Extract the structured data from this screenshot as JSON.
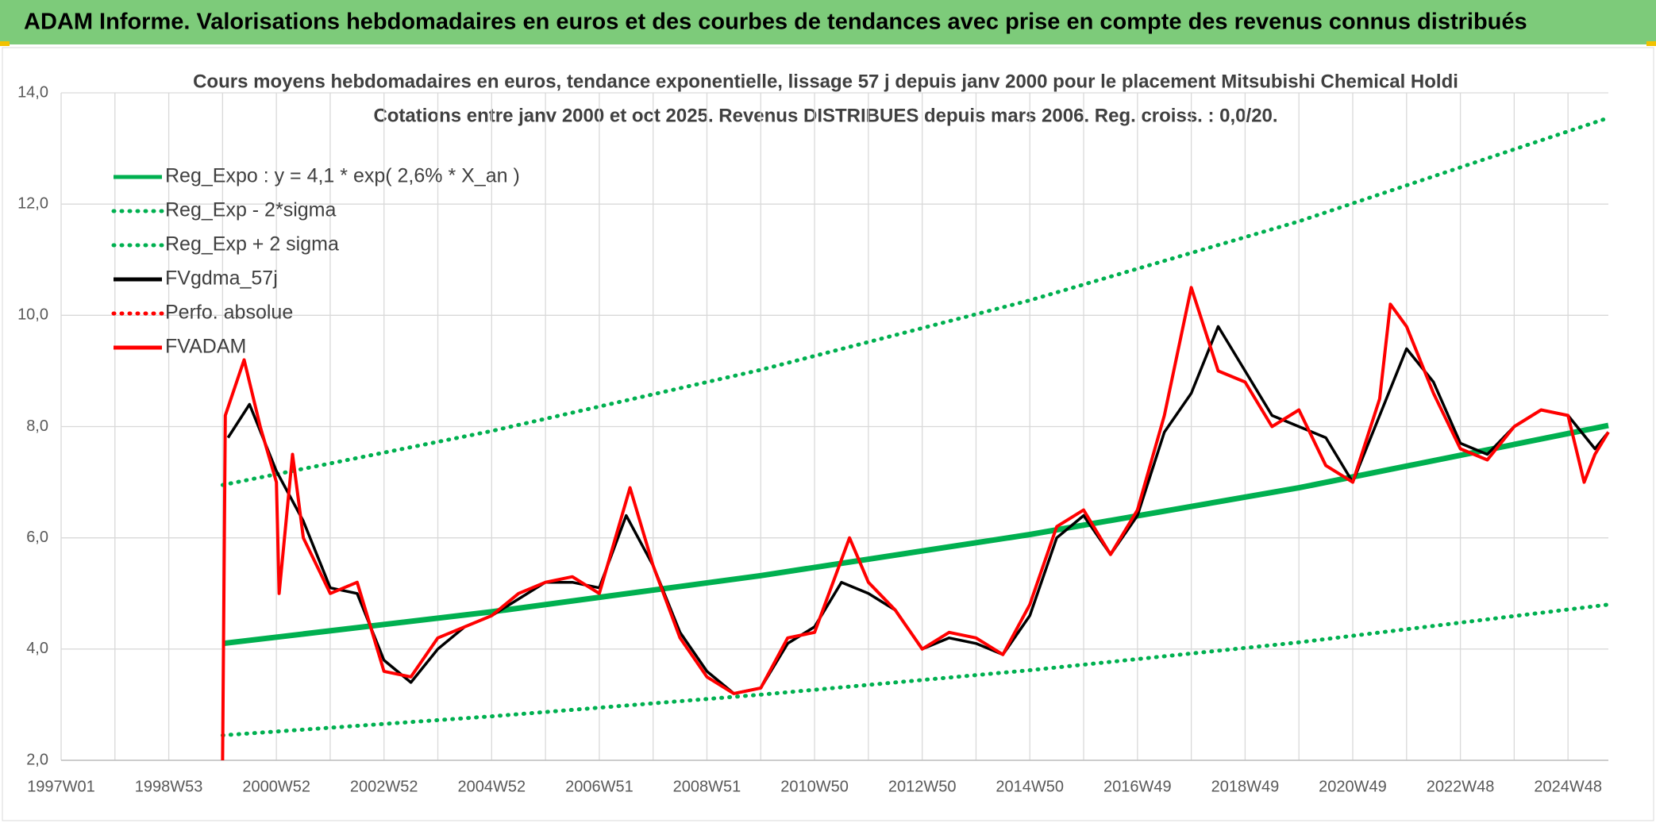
{
  "header": {
    "title": "ADAM Informe. Valorisations hebdomadaires en euros et des courbes de tendances avec prise en compte des revenus connus distribués"
  },
  "chart_data": {
    "type": "line",
    "title": "Cours moyens hebdomadaires en euros, tendance exponentielle, lissage 57 j depuis janv 2000 pour le placement Mitsubishi Chemical Holdi",
    "subtitle": "Cotations entre janv 2000 et oct 2025. Revenus DISTRIBUES depuis mars 2006. Reg. croiss. : 0,0/20.",
    "xlim": [
      1997,
      2025.75
    ],
    "xticks": [
      {
        "value": 1997,
        "label": "1997W01"
      },
      {
        "value": 1999,
        "label": "1998W53"
      },
      {
        "value": 2001,
        "label": "2000W52"
      },
      {
        "value": 2003,
        "label": "2002W52"
      },
      {
        "value": 2005,
        "label": "2004W52"
      },
      {
        "value": 2007,
        "label": "2006W51"
      },
      {
        "value": 2009,
        "label": "2008W51"
      },
      {
        "value": 2011,
        "label": "2010W50"
      },
      {
        "value": 2013,
        "label": "2012W50"
      },
      {
        "value": 2015,
        "label": "2014W50"
      },
      {
        "value": 2017,
        "label": "2016W49"
      },
      {
        "value": 2019,
        "label": "2018W49"
      },
      {
        "value": 2021,
        "label": "2020W49"
      },
      {
        "value": 2023,
        "label": "2022W48"
      },
      {
        "value": 2025,
        "label": "2024W48"
      }
    ],
    "xminorticks": [
      1998,
      2000,
      2002,
      2004,
      2006,
      2008,
      2010,
      2012,
      2014,
      2016,
      2018,
      2020,
      2022,
      2024
    ],
    "ylim": [
      2,
      14
    ],
    "yticks": [
      {
        "value": 2,
        "label": "2,0"
      },
      {
        "value": 4,
        "label": "4,0"
      },
      {
        "value": 6,
        "label": "6,0"
      },
      {
        "value": 8,
        "label": "8,0"
      },
      {
        "value": 10,
        "label": "10,0"
      },
      {
        "value": 12,
        "label": "12,0"
      },
      {
        "value": 14,
        "label": "14,0"
      }
    ],
    "grid": true,
    "legend": "top-left",
    "series": [
      {
        "name": "Reg_Expo : y = 4,1 * exp( 2,6% *  X_an )",
        "color": "#00b050",
        "style": "solid",
        "x": [
          2000,
          2005,
          2010,
          2015,
          2020,
          2025.75
        ],
        "values": [
          4.1,
          4.67,
          5.32,
          6.06,
          6.9,
          8.02
        ]
      },
      {
        "name": "Reg_Exp - 2*sigma",
        "color": "#00b050",
        "style": "dotted",
        "x": [
          2000,
          2005,
          2010,
          2015,
          2020,
          2025.75
        ],
        "values": [
          2.45,
          2.79,
          3.18,
          3.62,
          4.12,
          4.8
        ]
      },
      {
        "name": "Reg_Exp + 2 sigma",
        "color": "#00b050",
        "style": "dotted",
        "x": [
          2000,
          2005,
          2010,
          2015,
          2020,
          2025.75
        ],
        "values": [
          6.95,
          7.92,
          9.02,
          10.27,
          11.69,
          13.55
        ]
      },
      {
        "name": "FVgdma_57j",
        "color": "#000000",
        "style": "solid",
        "x": [
          2000.1,
          2000.5,
          2001.0,
          2001.5,
          2002.0,
          2002.5,
          2003.0,
          2003.5,
          2004.0,
          2004.5,
          2005.0,
          2005.5,
          2006.0,
          2006.5,
          2007.0,
          2007.5,
          2008.0,
          2008.5,
          2009.0,
          2009.5,
          2010.0,
          2010.5,
          2011.0,
          2011.5,
          2012.0,
          2012.5,
          2013.0,
          2013.5,
          2014.0,
          2014.5,
          2015.0,
          2015.5,
          2016.0,
          2016.5,
          2017.0,
          2017.5,
          2018.0,
          2018.5,
          2019.0,
          2019.5,
          2020.0,
          2020.5,
          2021.0,
          2021.5,
          2022.0,
          2022.5,
          2023.0,
          2023.5,
          2024.0,
          2024.5,
          2025.0,
          2025.5,
          2025.75
        ],
        "values": [
          7.8,
          8.4,
          7.2,
          6.3,
          5.1,
          5.0,
          3.8,
          3.4,
          4.0,
          4.4,
          4.6,
          4.9,
          5.2,
          5.2,
          5.1,
          6.4,
          5.5,
          4.3,
          3.6,
          3.2,
          3.3,
          4.1,
          4.4,
          5.2,
          5.0,
          4.7,
          4.0,
          4.2,
          4.1,
          3.9,
          4.6,
          6.0,
          6.4,
          5.7,
          6.4,
          7.9,
          8.6,
          9.8,
          9.0,
          8.2,
          8.0,
          7.8,
          7.0,
          8.2,
          9.4,
          8.8,
          7.7,
          7.5,
          8.0,
          8.3,
          8.2,
          7.6,
          7.9
        ]
      },
      {
        "name": "Perfo. absolue",
        "color": "#ff0000",
        "style": "dotted",
        "x": [],
        "values": []
      },
      {
        "name": "FVADAM",
        "color": "#ff0000",
        "style": "solid",
        "x": [
          2000.0,
          2000.05,
          2000.4,
          2000.7,
          2001.0,
          2001.05,
          2001.3,
          2001.5,
          2002.0,
          2002.5,
          2003.0,
          2003.5,
          2004.0,
          2004.5,
          2005.0,
          2005.5,
          2006.0,
          2006.5,
          2007.0,
          2007.57,
          2008.0,
          2008.5,
          2009.0,
          2009.5,
          2010.0,
          2010.5,
          2011.0,
          2011.65,
          2012.0,
          2012.5,
          2013.0,
          2013.5,
          2014.0,
          2014.5,
          2015.0,
          2015.5,
          2016.0,
          2016.5,
          2017.0,
          2017.5,
          2018.0,
          2018.5,
          2019.0,
          2019.5,
          2020.0,
          2020.5,
          2021.0,
          2021.5,
          2021.7,
          2022.0,
          2022.5,
          2023.0,
          2023.5,
          2024.0,
          2024.5,
          2025.0,
          2025.3,
          2025.5,
          2025.75
        ],
        "values": [
          2.0,
          8.2,
          9.2,
          8.0,
          7.0,
          5.0,
          7.5,
          6.0,
          5.0,
          5.2,
          3.6,
          3.5,
          4.2,
          4.4,
          4.6,
          5.0,
          5.2,
          5.3,
          5.0,
          6.9,
          5.5,
          4.2,
          3.5,
          3.2,
          3.3,
          4.2,
          4.3,
          6.0,
          5.2,
          4.7,
          4.0,
          4.3,
          4.2,
          3.9,
          4.8,
          6.2,
          6.5,
          5.7,
          6.5,
          8.2,
          10.5,
          9.0,
          8.8,
          8.0,
          8.3,
          7.3,
          7.0,
          8.5,
          10.2,
          9.8,
          8.6,
          7.6,
          7.4,
          8.0,
          8.3,
          8.2,
          7.0,
          7.5,
          7.9
        ]
      }
    ]
  }
}
